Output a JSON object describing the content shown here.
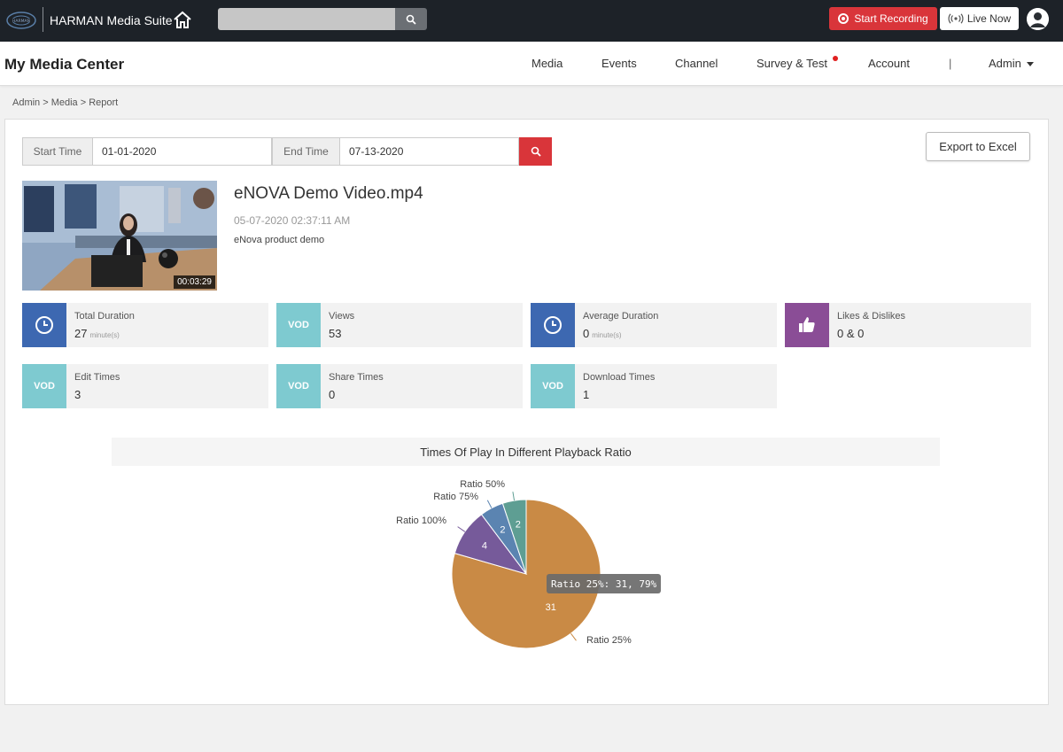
{
  "topbar": {
    "brand": "HARMAN Media Suite",
    "search_placeholder": "",
    "start_recording": "Start Recording",
    "live_now": "Live Now"
  },
  "navbar": {
    "title": "My Media Center",
    "items": [
      "Media",
      "Events",
      "Channel",
      "Survey & Test",
      "Account"
    ],
    "separator": "|",
    "admin": "Admin"
  },
  "breadcrumb": "Admin > Media > Report",
  "filters": {
    "start_label": "Start Time",
    "start_value": "01-01-2020",
    "end_label": "End Time",
    "end_value": "07-13-2020",
    "export": "Export to Excel"
  },
  "video": {
    "title": "eNOVA Demo Video.mp4",
    "date": "05-07-2020 02:37:11 AM",
    "description": "eNova product demo",
    "duration": "00:03:29"
  },
  "stats": [
    {
      "label": "Total Duration",
      "value": "27",
      "unit": "minute(s)",
      "icon": "clock-icon",
      "icon_text": "",
      "color": "#3d68b1"
    },
    {
      "label": "Views",
      "value": "53",
      "unit": "",
      "icon": "vod-icon",
      "icon_text": "VOD",
      "color": "#7ecad0"
    },
    {
      "label": "Average Duration",
      "value": "0",
      "unit": "minute(s)",
      "icon": "clock-icon",
      "icon_text": "",
      "color": "#3d68b1"
    },
    {
      "label": "Likes & Dislikes",
      "value": "0 & 0",
      "unit": "",
      "icon": "thumbs-up-icon",
      "icon_text": "",
      "color": "#8a4d96"
    },
    {
      "label": "Edit Times",
      "value": "3",
      "unit": "",
      "icon": "vod-icon",
      "icon_text": "VOD",
      "color": "#7ecad0"
    },
    {
      "label": "Share Times",
      "value": "0",
      "unit": "",
      "icon": "vod-icon",
      "icon_text": "VOD",
      "color": "#7ecad0"
    },
    {
      "label": "Download Times",
      "value": "1",
      "unit": "",
      "icon": "vod-icon",
      "icon_text": "VOD",
      "color": "#7ecad0"
    }
  ],
  "chart_data": {
    "type": "pie",
    "title": "Times Of Play In Different Playback Ratio",
    "slices": [
      {
        "label": "Ratio 25%",
        "value": 31,
        "color": "#c98a45"
      },
      {
        "label": "Ratio 100%",
        "value": 4,
        "color": "#765a9a"
      },
      {
        "label": "Ratio 75%",
        "value": 2,
        "color": "#5b84b1"
      },
      {
        "label": "Ratio 50%",
        "value": 2,
        "color": "#5e9e93"
      }
    ],
    "tooltip": "Ratio 25%: 31, 79%"
  }
}
